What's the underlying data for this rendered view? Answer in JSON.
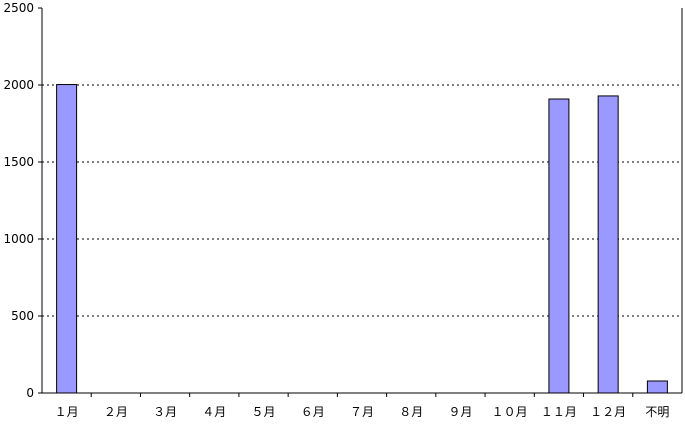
{
  "chart_data": {
    "type": "bar",
    "title": "",
    "xlabel": "",
    "ylabel": "",
    "categories": [
      "１月",
      "２月",
      "３月",
      "４月",
      "５月",
      "６月",
      "７月",
      "８月",
      "９月",
      "１０月",
      "１１月",
      "１２月",
      "不明"
    ],
    "values": [
      2003,
      0,
      0,
      0,
      0,
      0,
      0,
      0,
      0,
      0,
      1909,
      1929,
      78
    ],
    "ylim": [
      0,
      2500
    ],
    "yticks": [
      "0",
      "500",
      "1000",
      "1500",
      "2000",
      "2500"
    ],
    "grid": "horizontal dotted",
    "legend": "none",
    "bar_color": "#9999ff",
    "bar_border_color": "#000000"
  }
}
